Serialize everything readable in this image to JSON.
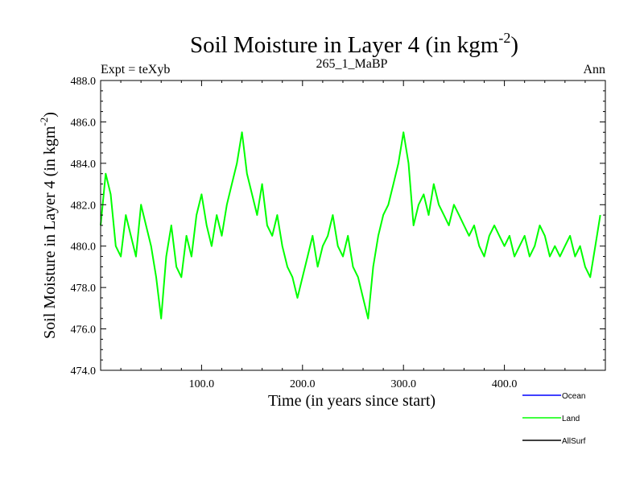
{
  "chart_data": {
    "type": "line",
    "title": "Soil Moisture in Layer 4 (in kgm",
    "title_sup": "-2",
    "title_close": ")",
    "subtitle_left": "Expt = teXyb",
    "subtitle_center": "265_1_MaBP",
    "subtitle_right": "Ann",
    "xlabel": "Time (in years since start)",
    "ylabel": "Soil Moisture in Layer 4 (in kgm",
    "ylabel_sup": "-2",
    "ylabel_close": ")",
    "xlim": [
      0,
      500
    ],
    "ylim": [
      474.0,
      488.0
    ],
    "xticks": [
      100,
      200,
      300,
      400
    ],
    "xtick_labels": [
      "100.0",
      "200.0",
      "300.0",
      "400.0"
    ],
    "yticks": [
      474,
      476,
      478,
      480,
      482,
      484,
      486,
      488
    ],
    "ytick_labels": [
      "474.0",
      "476.0",
      "478.0",
      "480.0",
      "482.0",
      "484.0",
      "486.0",
      "488.0"
    ],
    "legend_position": "bottom-right, below plot",
    "series": [
      {
        "name": "Land",
        "color": "#00ff00",
        "x": [
          0,
          5,
          10,
          15,
          20,
          25,
          30,
          35,
          40,
          45,
          50,
          55,
          60,
          65,
          70,
          75,
          80,
          85,
          90,
          95,
          100,
          105,
          110,
          115,
          120,
          125,
          130,
          135,
          140,
          145,
          150,
          155,
          160,
          165,
          170,
          175,
          180,
          185,
          190,
          195,
          200,
          205,
          210,
          215,
          220,
          225,
          230,
          235,
          240,
          245,
          250,
          255,
          260,
          265,
          270,
          275,
          280,
          285,
          290,
          295,
          300,
          305,
          310,
          315,
          320,
          325,
          330,
          335,
          340,
          345,
          350,
          355,
          360,
          365,
          370,
          375,
          380,
          385,
          390,
          395,
          400,
          405,
          410,
          415,
          420,
          425,
          430,
          435,
          440,
          445,
          450,
          455,
          460,
          465,
          470,
          475,
          480,
          485,
          490,
          495
        ],
        "values": [
          481.0,
          483.5,
          482.5,
          480.0,
          479.5,
          481.5,
          480.5,
          479.5,
          482.0,
          481.0,
          480.0,
          478.5,
          476.5,
          479.5,
          481.0,
          479.0,
          478.5,
          480.5,
          479.5,
          481.5,
          482.5,
          481.0,
          480.0,
          481.5,
          480.5,
          482.0,
          483.0,
          484.0,
          485.5,
          483.5,
          482.5,
          481.5,
          483.0,
          481.0,
          480.5,
          481.5,
          480.0,
          479.0,
          478.5,
          477.5,
          478.5,
          479.5,
          480.5,
          479.0,
          480.0,
          480.5,
          481.5,
          480.0,
          479.5,
          480.5,
          479.0,
          478.5,
          477.5,
          476.5,
          479.0,
          480.5,
          481.5,
          482.0,
          483.0,
          484.0,
          485.5,
          484.0,
          481.0,
          482.0,
          482.5,
          481.5,
          483.0,
          482.0,
          481.5,
          481.0,
          482.0,
          481.5,
          481.0,
          480.5,
          481.0,
          480.0,
          479.5,
          480.5,
          481.0,
          480.5,
          480.0,
          480.5,
          479.5,
          480.0,
          480.5,
          479.5,
          480.0,
          481.0,
          480.5,
          479.5,
          480.0,
          479.5,
          480.0,
          480.5,
          479.5,
          480.0,
          479.0,
          478.5,
          480.0,
          481.5
        ]
      }
    ],
    "legend_entries": [
      {
        "name": "Ocean",
        "color": "#0000ff"
      },
      {
        "name": "Land",
        "color": "#00ff00"
      },
      {
        "name": "AllSurf",
        "color": "#000000"
      }
    ]
  }
}
